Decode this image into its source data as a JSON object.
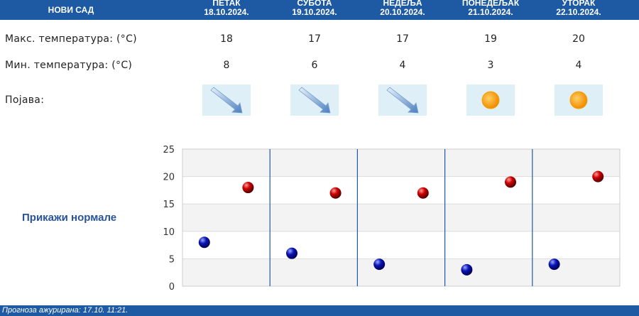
{
  "header": {
    "city": "НОВИ САД"
  },
  "days": [
    {
      "name": "ПЕТАК",
      "date": "18.10.2024.",
      "max": "18",
      "min": "8",
      "weather": "wind-icon"
    },
    {
      "name": "СУБОТА",
      "date": "19.10.2024.",
      "max": "17",
      "min": "6",
      "weather": "wind-icon"
    },
    {
      "name": "НЕДЕЉА",
      "date": "20.10.2024.",
      "max": "17",
      "min": "4",
      "weather": "wind-icon"
    },
    {
      "name": "ПОНЕДЕЉАК",
      "date": "21.10.2024.",
      "max": "19",
      "min": "3",
      "weather": "sun-icon"
    },
    {
      "name": "УТОРАК",
      "date": "22.10.2024.",
      "max": "20",
      "min": "4",
      "weather": "sun-icon"
    }
  ],
  "labels": {
    "max_temp": "Макс. температура: (°C)",
    "min_temp": "Мин. температура: (°C)",
    "weather": "Појава:"
  },
  "normals_link": "Прикажи нормале",
  "footer": "Прогноза ажурирана:  17.10. 11:21.",
  "colors": {
    "header": "#1d5aa3",
    "max_point": "#cc0000",
    "min_point": "#0a14b4",
    "link": "#27549a"
  },
  "chart_data": {
    "type": "scatter",
    "categories": [
      "ПЕТАК",
      "СУБОТА",
      "НЕДЕЉА",
      "ПОНЕДЕЉАК",
      "УТОРАК"
    ],
    "series": [
      {
        "values": [
          18,
          17,
          17,
          19,
          20
        ],
        "color": "#cc0000"
      },
      {
        "values": [
          8,
          6,
          4,
          3,
          4
        ],
        "color": "#0a14b4"
      }
    ],
    "yticks": [
      "0",
      "5",
      "10",
      "15",
      "20",
      "25"
    ],
    "ylim": [
      0,
      25
    ],
    "grid": true
  }
}
